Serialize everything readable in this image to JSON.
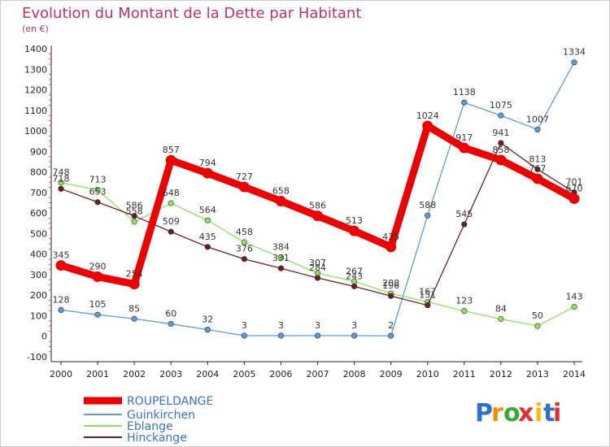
{
  "chart_data": {
    "type": "line",
    "title": "Evolution du Montant de la Dette par Habitant",
    "subtitle": "(en €)",
    "x": [
      "2000",
      "2001",
      "2002",
      "2003",
      "2004",
      "2005",
      "2006",
      "2007",
      "2008",
      "2009",
      "2010",
      "2011",
      "2012",
      "2013",
      "2014"
    ],
    "ylim": [
      -100,
      1400
    ],
    "yticks": [
      -100,
      0,
      100,
      200,
      300,
      400,
      500,
      600,
      700,
      800,
      900,
      1000,
      1100,
      1200,
      1300,
      1400
    ],
    "grid": false,
    "legend_position": "bottom-left",
    "series": [
      {
        "name": "ROUPELDANGE",
        "color": "#ee0000",
        "values": [
          345,
          290,
          254,
          857,
          794,
          727,
          658,
          586,
          513,
          435,
          1024,
          917,
          858,
          767,
          670
        ]
      },
      {
        "name": "Guinkirchen",
        "color": "#5b9bd5",
        "values": [
          128,
          105,
          85,
          60,
          32,
          3,
          3,
          3,
          3,
          2,
          588,
          1138,
          1075,
          1007,
          1334
        ]
      },
      {
        "name": "Eblange",
        "color": "#8fe060",
        "values": [
          748,
          713,
          558,
          648,
          564,
          458,
          384,
          307,
          267,
          208,
          167,
          123,
          84,
          50,
          143
        ]
      },
      {
        "name": "Hinckange",
        "color": "#6b1f24",
        "values": [
          718,
          653,
          586,
          509,
          435,
          376,
          331,
          284,
          243,
          196,
          151,
          545,
          941,
          813,
          701
        ]
      }
    ]
  },
  "logo": {
    "text": "Proxiti",
    "letter_colors": [
      "#2e6fd6",
      "#f28c00",
      "#3aa835",
      "#e03030",
      "#f2c200",
      "#2e6fd6",
      "#e03030"
    ]
  }
}
